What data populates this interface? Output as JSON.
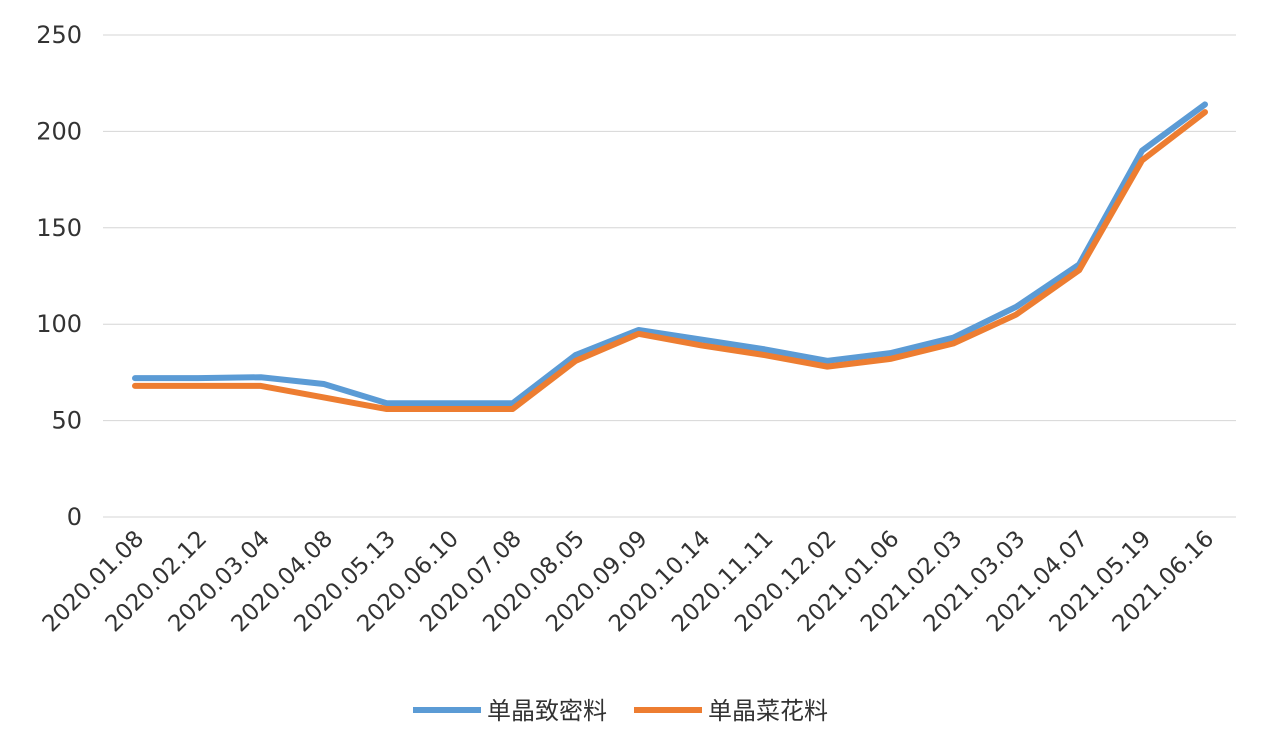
{
  "chart_data": {
    "type": "line",
    "title": "",
    "xlabel": "",
    "ylabel": "",
    "ylim": [
      0,
      250
    ],
    "yticks": [
      "0",
      "50",
      "100",
      "150",
      "200",
      "250"
    ],
    "grid": true,
    "legend_position": "bottom",
    "categories": [
      "2020.01.08",
      "2020.02.12",
      "2020.03.04",
      "2020.04.08",
      "2020.05.13",
      "2020.06.10",
      "2020.07.08",
      "2020.08.05",
      "2020.09.09",
      "2020.10.14",
      "2020.11.11",
      "2020.12.02",
      "2021.01.06",
      "2021.02.03",
      "2021.03.03",
      "2021.04.07",
      "2021.05.19",
      "2021.06.16"
    ],
    "series": [
      {
        "name": "单晶致密料",
        "color": "#5B9BD5",
        "values": [
          72,
          72,
          72.5,
          69,
          59,
          59,
          59,
          84,
          97,
          92,
          87,
          81,
          85,
          93,
          109,
          131,
          190,
          214
        ]
      },
      {
        "name": "单晶菜花料",
        "color": "#ED7D31",
        "values": [
          68,
          68,
          68,
          62,
          56,
          56,
          56,
          81,
          95,
          89,
          84,
          78,
          82,
          90,
          105,
          128,
          185,
          210
        ]
      }
    ]
  }
}
